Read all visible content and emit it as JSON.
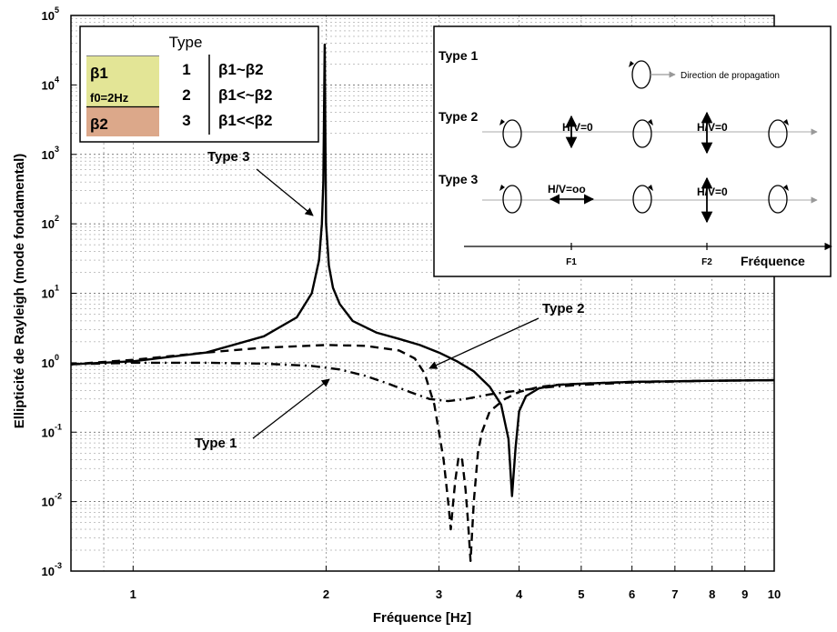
{
  "colors": {
    "layer1": "#e3e596",
    "layer2": "#dca88a",
    "curve": "#000000",
    "propagation_arrow": "#999999"
  },
  "chart_data": {
    "type": "line",
    "xscale": "log",
    "yscale": "log",
    "xlim": [
      0.8,
      10
    ],
    "ylim": [
      0.001,
      100000
    ],
    "grid": true,
    "xlabel": "Fréquence [Hz]",
    "ylabel": "Ellipticité de Rayleigh (mode fondamental)",
    "x_ticks": [
      "1",
      "2",
      "3",
      "4",
      "5",
      "6",
      "7",
      "8",
      "9",
      "10"
    ],
    "x_tick_values": [
      1,
      2,
      3,
      4,
      5,
      6,
      7,
      8,
      9,
      10
    ],
    "y_tick_exponents": [
      5,
      4,
      3,
      2,
      1,
      0,
      -1,
      -2,
      -3
    ],
    "y_tick_base": "10",
    "series": [
      {
        "id": "type3",
        "style": "solid",
        "x": [
          0.8,
          1.0,
          1.3,
          1.6,
          1.8,
          1.9,
          1.95,
          1.97,
          1.98,
          1.99,
          2.0,
          2.02,
          2.05,
          2.1,
          2.2,
          2.4,
          2.6,
          2.8,
          3.0,
          3.2,
          3.4,
          3.6,
          3.75,
          3.85,
          3.9,
          3.95,
          4.0,
          4.1,
          4.3,
          4.6,
          5.0,
          6.0,
          7.0,
          8.0,
          10.0
        ],
        "y": [
          0.95,
          1.05,
          1.4,
          2.4,
          4.5,
          10,
          30,
          100,
          400,
          38000,
          100,
          25,
          12,
          7,
          4,
          2.7,
          2.2,
          1.8,
          1.4,
          1.05,
          0.75,
          0.45,
          0.25,
          0.08,
          0.012,
          0.06,
          0.2,
          0.33,
          0.43,
          0.48,
          0.5,
          0.53,
          0.54,
          0.55,
          0.56
        ]
      },
      {
        "id": "type2",
        "style": "dashed",
        "x": [
          0.8,
          1.0,
          1.3,
          1.6,
          2.0,
          2.3,
          2.6,
          2.75,
          2.85,
          2.95,
          3.05,
          3.1,
          3.13,
          3.15,
          3.18,
          3.22,
          3.26,
          3.3,
          3.33,
          3.36,
          3.4,
          3.45,
          3.5,
          3.6,
          3.8,
          4.0,
          4.3,
          4.6,
          5.0,
          6.0,
          8.0,
          10.0
        ],
        "y": [
          0.95,
          1.1,
          1.4,
          1.65,
          1.8,
          1.75,
          1.5,
          1.15,
          0.7,
          0.25,
          0.04,
          0.01,
          0.004,
          0.008,
          0.02,
          0.045,
          0.04,
          0.015,
          0.005,
          0.0014,
          0.01,
          0.05,
          0.1,
          0.2,
          0.3,
          0.38,
          0.45,
          0.48,
          0.5,
          0.53,
          0.55,
          0.56
        ]
      },
      {
        "id": "type1",
        "style": "dashdot",
        "x": [
          0.8,
          1.0,
          1.3,
          1.6,
          1.9,
          2.1,
          2.3,
          2.5,
          2.7,
          2.9,
          3.1,
          3.3,
          3.6,
          4.0,
          4.5,
          5.0,
          6.0,
          8.0,
          10.0
        ],
        "y": [
          0.95,
          1.0,
          1.0,
          0.97,
          0.9,
          0.8,
          0.65,
          0.5,
          0.38,
          0.3,
          0.28,
          0.3,
          0.35,
          0.4,
          0.45,
          0.48,
          0.52,
          0.55,
          0.56
        ]
      }
    ],
    "annotations": [
      {
        "text": "Type 3",
        "points_to": [
          1.98,
          100
        ]
      },
      {
        "text": "Type 2",
        "points_to": [
          2.9,
          0.9
        ]
      },
      {
        "text": "Type 1",
        "points_to": [
          1.95,
          0.8
        ]
      }
    ]
  },
  "legend_table": {
    "title": "Type",
    "layer1_label": "β1",
    "f0_label": "f0=2Hz",
    "layer2_label": "β2",
    "rows": [
      {
        "num": "1",
        "cond": "β1~β2"
      },
      {
        "num": "2",
        "cond": "β1<~β2"
      },
      {
        "num": "3",
        "cond": "β1<<β2"
      }
    ]
  },
  "inset": {
    "row_labels": [
      "Type 1",
      "Type 2",
      "Type 3"
    ],
    "direction_label": "Direction de propagation",
    "hv_zero": "H/V=0",
    "hv_inf": "H/V=oo",
    "f1": "F1",
    "f2": "F2",
    "freq_label": "Fréquence"
  }
}
